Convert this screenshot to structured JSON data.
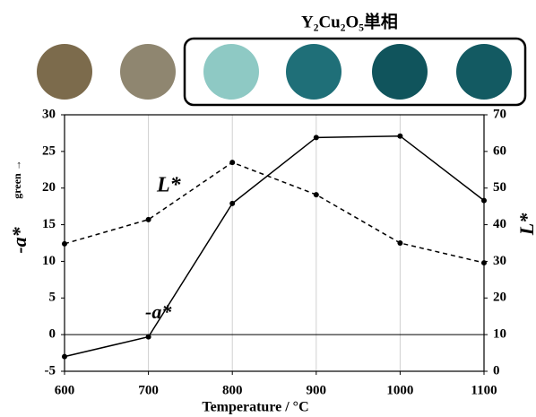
{
  "chart_data": {
    "type": "line",
    "header": "Y₂Cu₂O₅単相",
    "x": [
      600,
      700,
      800,
      900,
      1000,
      1100
    ],
    "xlim": [
      600,
      1100
    ],
    "xticks": [
      600,
      700,
      800,
      900,
      1000,
      1100
    ],
    "ylim": [
      -5,
      30
    ],
    "yticks": [
      -5,
      0,
      5,
      10,
      15,
      20,
      25,
      30
    ],
    "y2lim": [
      0,
      70
    ],
    "y2ticks": [
      0,
      10,
      20,
      30,
      40,
      50,
      60,
      70
    ],
    "xlabel": "Temperature / °C",
    "ylabel": "-a*",
    "ylabel_note": "green →",
    "y2label": "L*",
    "grid": "x",
    "series": [
      {
        "name": "-a*",
        "color": "#000000",
        "dashed": false,
        "values": [
          -3.0,
          -0.3,
          17.9,
          26.9,
          27.1,
          18.3
        ]
      },
      {
        "name": "L*",
        "color": "#000000",
        "dashed": true,
        "axis": "y2",
        "values": [
          34.8,
          41.4,
          57.0,
          48.2,
          35.0,
          29.6
        ]
      }
    ]
  }
}
